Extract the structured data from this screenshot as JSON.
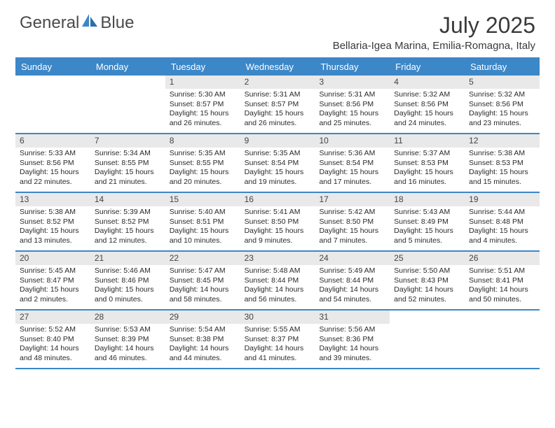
{
  "logo": {
    "text1": "General",
    "text2": "Blue"
  },
  "title": "July 2025",
  "location": "Bellaria-Igea Marina, Emilia-Romagna, Italy",
  "colors": {
    "header_bg": "#3c87c8",
    "header_text": "#ffffff",
    "daynum_bg": "#e9e9e9",
    "border": "#3c87c8",
    "text": "#2a2a2a"
  },
  "day_headers": [
    "Sunday",
    "Monday",
    "Tuesday",
    "Wednesday",
    "Thursday",
    "Friday",
    "Saturday"
  ],
  "weeks": [
    [
      {
        "n": "",
        "sunrise": "",
        "sunset": "",
        "daylight": ""
      },
      {
        "n": "",
        "sunrise": "",
        "sunset": "",
        "daylight": ""
      },
      {
        "n": "1",
        "sunrise": "Sunrise: 5:30 AM",
        "sunset": "Sunset: 8:57 PM",
        "daylight": "Daylight: 15 hours and 26 minutes."
      },
      {
        "n": "2",
        "sunrise": "Sunrise: 5:31 AM",
        "sunset": "Sunset: 8:57 PM",
        "daylight": "Daylight: 15 hours and 26 minutes."
      },
      {
        "n": "3",
        "sunrise": "Sunrise: 5:31 AM",
        "sunset": "Sunset: 8:56 PM",
        "daylight": "Daylight: 15 hours and 25 minutes."
      },
      {
        "n": "4",
        "sunrise": "Sunrise: 5:32 AM",
        "sunset": "Sunset: 8:56 PM",
        "daylight": "Daylight: 15 hours and 24 minutes."
      },
      {
        "n": "5",
        "sunrise": "Sunrise: 5:32 AM",
        "sunset": "Sunset: 8:56 PM",
        "daylight": "Daylight: 15 hours and 23 minutes."
      }
    ],
    [
      {
        "n": "6",
        "sunrise": "Sunrise: 5:33 AM",
        "sunset": "Sunset: 8:56 PM",
        "daylight": "Daylight: 15 hours and 22 minutes."
      },
      {
        "n": "7",
        "sunrise": "Sunrise: 5:34 AM",
        "sunset": "Sunset: 8:55 PM",
        "daylight": "Daylight: 15 hours and 21 minutes."
      },
      {
        "n": "8",
        "sunrise": "Sunrise: 5:35 AM",
        "sunset": "Sunset: 8:55 PM",
        "daylight": "Daylight: 15 hours and 20 minutes."
      },
      {
        "n": "9",
        "sunrise": "Sunrise: 5:35 AM",
        "sunset": "Sunset: 8:54 PM",
        "daylight": "Daylight: 15 hours and 19 minutes."
      },
      {
        "n": "10",
        "sunrise": "Sunrise: 5:36 AM",
        "sunset": "Sunset: 8:54 PM",
        "daylight": "Daylight: 15 hours and 17 minutes."
      },
      {
        "n": "11",
        "sunrise": "Sunrise: 5:37 AM",
        "sunset": "Sunset: 8:53 PM",
        "daylight": "Daylight: 15 hours and 16 minutes."
      },
      {
        "n": "12",
        "sunrise": "Sunrise: 5:38 AM",
        "sunset": "Sunset: 8:53 PM",
        "daylight": "Daylight: 15 hours and 15 minutes."
      }
    ],
    [
      {
        "n": "13",
        "sunrise": "Sunrise: 5:38 AM",
        "sunset": "Sunset: 8:52 PM",
        "daylight": "Daylight: 15 hours and 13 minutes."
      },
      {
        "n": "14",
        "sunrise": "Sunrise: 5:39 AM",
        "sunset": "Sunset: 8:52 PM",
        "daylight": "Daylight: 15 hours and 12 minutes."
      },
      {
        "n": "15",
        "sunrise": "Sunrise: 5:40 AM",
        "sunset": "Sunset: 8:51 PM",
        "daylight": "Daylight: 15 hours and 10 minutes."
      },
      {
        "n": "16",
        "sunrise": "Sunrise: 5:41 AM",
        "sunset": "Sunset: 8:50 PM",
        "daylight": "Daylight: 15 hours and 9 minutes."
      },
      {
        "n": "17",
        "sunrise": "Sunrise: 5:42 AM",
        "sunset": "Sunset: 8:50 PM",
        "daylight": "Daylight: 15 hours and 7 minutes."
      },
      {
        "n": "18",
        "sunrise": "Sunrise: 5:43 AM",
        "sunset": "Sunset: 8:49 PM",
        "daylight": "Daylight: 15 hours and 5 minutes."
      },
      {
        "n": "19",
        "sunrise": "Sunrise: 5:44 AM",
        "sunset": "Sunset: 8:48 PM",
        "daylight": "Daylight: 15 hours and 4 minutes."
      }
    ],
    [
      {
        "n": "20",
        "sunrise": "Sunrise: 5:45 AM",
        "sunset": "Sunset: 8:47 PM",
        "daylight": "Daylight: 15 hours and 2 minutes."
      },
      {
        "n": "21",
        "sunrise": "Sunrise: 5:46 AM",
        "sunset": "Sunset: 8:46 PM",
        "daylight": "Daylight: 15 hours and 0 minutes."
      },
      {
        "n": "22",
        "sunrise": "Sunrise: 5:47 AM",
        "sunset": "Sunset: 8:45 PM",
        "daylight": "Daylight: 14 hours and 58 minutes."
      },
      {
        "n": "23",
        "sunrise": "Sunrise: 5:48 AM",
        "sunset": "Sunset: 8:44 PM",
        "daylight": "Daylight: 14 hours and 56 minutes."
      },
      {
        "n": "24",
        "sunrise": "Sunrise: 5:49 AM",
        "sunset": "Sunset: 8:44 PM",
        "daylight": "Daylight: 14 hours and 54 minutes."
      },
      {
        "n": "25",
        "sunrise": "Sunrise: 5:50 AM",
        "sunset": "Sunset: 8:43 PM",
        "daylight": "Daylight: 14 hours and 52 minutes."
      },
      {
        "n": "26",
        "sunrise": "Sunrise: 5:51 AM",
        "sunset": "Sunset: 8:41 PM",
        "daylight": "Daylight: 14 hours and 50 minutes."
      }
    ],
    [
      {
        "n": "27",
        "sunrise": "Sunrise: 5:52 AM",
        "sunset": "Sunset: 8:40 PM",
        "daylight": "Daylight: 14 hours and 48 minutes."
      },
      {
        "n": "28",
        "sunrise": "Sunrise: 5:53 AM",
        "sunset": "Sunset: 8:39 PM",
        "daylight": "Daylight: 14 hours and 46 minutes."
      },
      {
        "n": "29",
        "sunrise": "Sunrise: 5:54 AM",
        "sunset": "Sunset: 8:38 PM",
        "daylight": "Daylight: 14 hours and 44 minutes."
      },
      {
        "n": "30",
        "sunrise": "Sunrise: 5:55 AM",
        "sunset": "Sunset: 8:37 PM",
        "daylight": "Daylight: 14 hours and 41 minutes."
      },
      {
        "n": "31",
        "sunrise": "Sunrise: 5:56 AM",
        "sunset": "Sunset: 8:36 PM",
        "daylight": "Daylight: 14 hours and 39 minutes."
      },
      {
        "n": "",
        "sunrise": "",
        "sunset": "",
        "daylight": ""
      },
      {
        "n": "",
        "sunrise": "",
        "sunset": "",
        "daylight": ""
      }
    ]
  ]
}
